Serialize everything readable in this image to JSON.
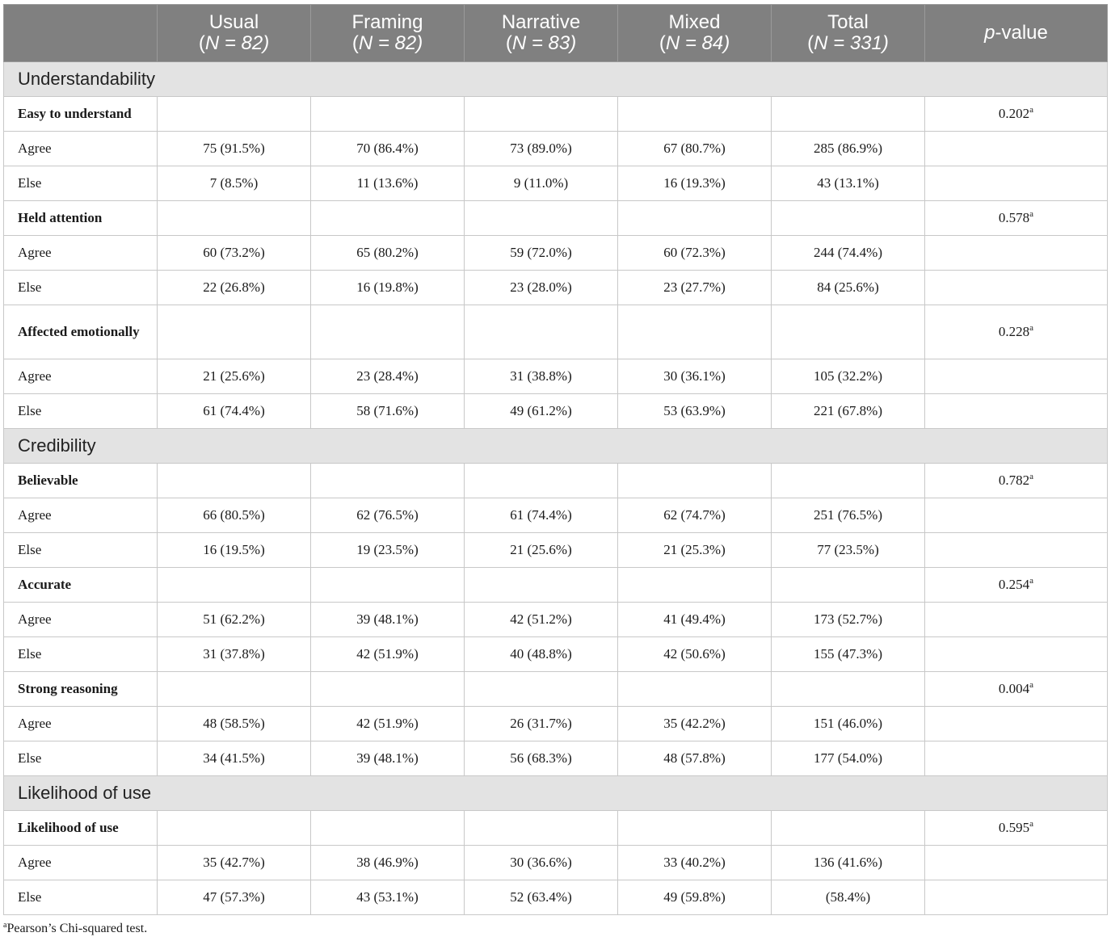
{
  "header": {
    "columns": [
      {
        "name": "",
        "n_prefix": "",
        "n_value": ""
      },
      {
        "name": "Usual",
        "n_prefix": "(",
        "n_value": "N = 82)"
      },
      {
        "name": "Framing",
        "n_prefix": "(",
        "n_value": "N = 82)"
      },
      {
        "name": "Narrative",
        "n_prefix": "(",
        "n_value": "N = 83)"
      },
      {
        "name": "Mixed",
        "n_prefix": "(",
        "n_value": "N = 84)"
      },
      {
        "name": "Total",
        "n_prefix": "(",
        "n_value": "N = 331)"
      }
    ],
    "pvalue_italic": "p",
    "pvalue_rest": "-value"
  },
  "sections": [
    {
      "title": "Understandability",
      "items": [
        {
          "label": "Easy to understand",
          "p": "0.202",
          "sup": "a",
          "rows": [
            {
              "label": "Agree",
              "values": [
                "75 (91.5%)",
                "70 (86.4%)",
                "73 (89.0%)",
                "67 (80.7%)",
                "285 (86.9%)"
              ]
            },
            {
              "label": "Else",
              "values": [
                "7 (8.5%)",
                "11 (13.6%)",
                "9 (11.0%)",
                "16 (19.3%)",
                "43 (13.1%)"
              ]
            }
          ]
        },
        {
          "label": "Held attention",
          "p": "0.578",
          "sup": "a",
          "rows": [
            {
              "label": "Agree",
              "values": [
                "60 (73.2%)",
                "65 (80.2%)",
                "59 (72.0%)",
                "60 (72.3%)",
                "244 (74.4%)"
              ]
            },
            {
              "label": "Else",
              "values": [
                "22 (26.8%)",
                "16 (19.8%)",
                "23 (28.0%)",
                "23 (27.7%)",
                "84 (25.6%)"
              ]
            }
          ]
        },
        {
          "label": "Affected emotionally",
          "p": "0.228",
          "sup": "a",
          "tall": true,
          "rows": [
            {
              "label": "Agree",
              "values": [
                "21 (25.6%)",
                "23 (28.4%)",
                "31 (38.8%)",
                "30 (36.1%)",
                "105 (32.2%)"
              ]
            },
            {
              "label": "Else",
              "values": [
                "61 (74.4%)",
                "58 (71.6%)",
                "49 (61.2%)",
                "53 (63.9%)",
                "221 (67.8%)"
              ]
            }
          ]
        }
      ]
    },
    {
      "title": "Credibility",
      "items": [
        {
          "label": "Believable",
          "p": "0.782",
          "sup": "a",
          "rows": [
            {
              "label": "Agree",
              "values": [
                "66 (80.5%)",
                "62 (76.5%)",
                "61 (74.4%)",
                "62 (74.7%)",
                "251 (76.5%)"
              ]
            },
            {
              "label": "Else",
              "values": [
                "16 (19.5%)",
                "19 (23.5%)",
                "21 (25.6%)",
                "21 (25.3%)",
                "77 (23.5%)"
              ]
            }
          ]
        },
        {
          "label": "Accurate",
          "p": "0.254",
          "sup": "a",
          "rows": [
            {
              "label": "Agree",
              "values": [
                "51 (62.2%)",
                "39 (48.1%)",
                "42 (51.2%)",
                "41 (49.4%)",
                "173 (52.7%)"
              ]
            },
            {
              "label": "Else",
              "values": [
                "31 (37.8%)",
                "42 (51.9%)",
                "40 (48.8%)",
                "42 (50.6%)",
                "155 (47.3%)"
              ]
            }
          ]
        },
        {
          "label": "Strong reasoning",
          "p": "0.004",
          "sup": "a",
          "rows": [
            {
              "label": "Agree",
              "values": [
                "48 (58.5%)",
                "42 (51.9%)",
                "26 (31.7%)",
                "35 (42.2%)",
                "151 (46.0%)"
              ]
            },
            {
              "label": "Else",
              "values": [
                "34 (41.5%)",
                "39 (48.1%)",
                "56 (68.3%)",
                "48 (57.8%)",
                "177 (54.0%)"
              ]
            }
          ]
        }
      ]
    },
    {
      "title": "Likelihood of use",
      "items": [
        {
          "label": "Likelihood of use",
          "p": "0.595",
          "sup": "a",
          "rows": [
            {
              "label": "Agree",
              "values": [
                "35 (42.7%)",
                "38 (46.9%)",
                "30 (36.6%)",
                "33 (40.2%)",
                "136 (41.6%)"
              ]
            },
            {
              "label": "Else",
              "values": [
                "47 (57.3%)",
                "43 (53.1%)",
                "52 (63.4%)",
                "49 (59.8%)",
                "(58.4%)"
              ]
            }
          ]
        }
      ]
    }
  ],
  "footnote": {
    "mark": "a",
    "text": "Pearson’s Chi-squared test."
  }
}
